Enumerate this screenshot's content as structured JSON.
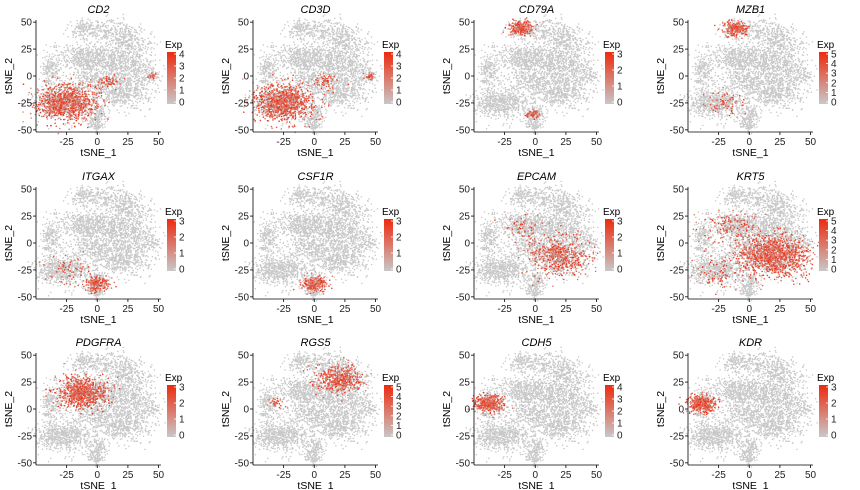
{
  "chart_data": {
    "type": "scatter",
    "subtype": "tSNE feature plot grid",
    "layout": {
      "rows": 3,
      "cols": 4
    },
    "xlabel": "tSNE_1",
    "ylabel": "tSNE_2",
    "xticks": [
      -25,
      0,
      25,
      50
    ],
    "yticks": [
      50,
      25,
      0,
      -25,
      -50
    ],
    "xlim": [
      -50,
      52
    ],
    "ylim": [
      -52,
      52
    ],
    "legend_title": "Exp",
    "low_color": "#c8c8c8",
    "high_color": "#ee2a0e",
    "panels": [
      {
        "gene": "CD2",
        "max": 4,
        "legend_ticks": [
          "4",
          "3",
          "2",
          "1",
          "0"
        ],
        "hotspots": [
          {
            "x": -25,
            "y": -25,
            "r": 12,
            "n": 900
          },
          {
            "x": 10,
            "y": -5,
            "r": 5,
            "n": 60
          },
          {
            "x": 45,
            "y": 0,
            "r": 2,
            "n": 30
          }
        ]
      },
      {
        "gene": "CD3D",
        "max": 4,
        "legend_ticks": [
          "4",
          "3",
          "2",
          "1",
          "0"
        ],
        "hotspots": [
          {
            "x": -25,
            "y": -25,
            "r": 12,
            "n": 900
          },
          {
            "x": 10,
            "y": -5,
            "r": 5,
            "n": 60
          },
          {
            "x": 45,
            "y": 0,
            "r": 2,
            "n": 30
          }
        ]
      },
      {
        "gene": "CD79A",
        "max": 3,
        "legend_ticks": [
          "3",
          "2",
          "1",
          "0"
        ],
        "hotspots": [
          {
            "x": -12,
            "y": 44,
            "r": 5,
            "n": 220
          },
          {
            "x": -2,
            "y": -35,
            "r": 3,
            "n": 60
          }
        ]
      },
      {
        "gene": "MZB1",
        "max": 5,
        "legend_ticks": [
          "5",
          "4",
          "3",
          "2",
          "1",
          "0"
        ],
        "hotspots": [
          {
            "x": -12,
            "y": 44,
            "r": 5,
            "n": 220
          },
          {
            "x": -20,
            "y": -25,
            "r": 8,
            "n": 80
          }
        ]
      },
      {
        "gene": "ITGAX",
        "max": 3,
        "legend_ticks": [
          "3",
          "2",
          "1",
          "0"
        ],
        "hotspots": [
          {
            "x": 0,
            "y": -38,
            "r": 5,
            "n": 200
          },
          {
            "x": -25,
            "y": -25,
            "r": 10,
            "n": 70
          }
        ]
      },
      {
        "gene": "CSF1R",
        "max": 3,
        "legend_ticks": [
          "3",
          "2",
          "1",
          "0"
        ],
        "hotspots": [
          {
            "x": 0,
            "y": -38,
            "r": 5,
            "n": 220
          }
        ]
      },
      {
        "gene": "EPCAM",
        "max": 3,
        "legend_ticks": [
          "3",
          "2",
          "1",
          "0"
        ],
        "hotspots": [
          {
            "x": 20,
            "y": -12,
            "r": 13,
            "n": 500
          },
          {
            "x": -10,
            "y": 15,
            "r": 8,
            "n": 60
          }
        ]
      },
      {
        "gene": "KRT5",
        "max": 5,
        "legend_ticks": [
          "5",
          "4",
          "3",
          "2",
          "1",
          "0"
        ],
        "hotspots": [
          {
            "x": 20,
            "y": -12,
            "r": 14,
            "n": 1100
          },
          {
            "x": -15,
            "y": 15,
            "r": 12,
            "n": 150
          },
          {
            "x": -25,
            "y": -25,
            "r": 12,
            "n": 90
          }
        ]
      },
      {
        "gene": "PDGFRA",
        "max": 3,
        "legend_ticks": [
          "3",
          "2",
          "1",
          "0"
        ],
        "hotspots": [
          {
            "x": -12,
            "y": 15,
            "r": 10,
            "n": 750
          }
        ]
      },
      {
        "gene": "RGS5",
        "max": 5,
        "legend_ticks": [
          "5",
          "4",
          "3",
          "2",
          "1",
          "0"
        ],
        "hotspots": [
          {
            "x": 20,
            "y": 28,
            "r": 9,
            "n": 450
          },
          {
            "x": -30,
            "y": 5,
            "r": 4,
            "n": 30
          }
        ]
      },
      {
        "gene": "CDH5",
        "max": 4,
        "legend_ticks": [
          "4",
          "3",
          "2",
          "1",
          "0"
        ],
        "hotspots": [
          {
            "x": -38,
            "y": 5,
            "r": 6,
            "n": 380
          }
        ]
      },
      {
        "gene": "KDR",
        "max": 3,
        "legend_ticks": [
          "3",
          "2",
          "1",
          "0"
        ],
        "hotspots": [
          {
            "x": -38,
            "y": 5,
            "r": 6,
            "n": 380
          }
        ]
      }
    ]
  }
}
